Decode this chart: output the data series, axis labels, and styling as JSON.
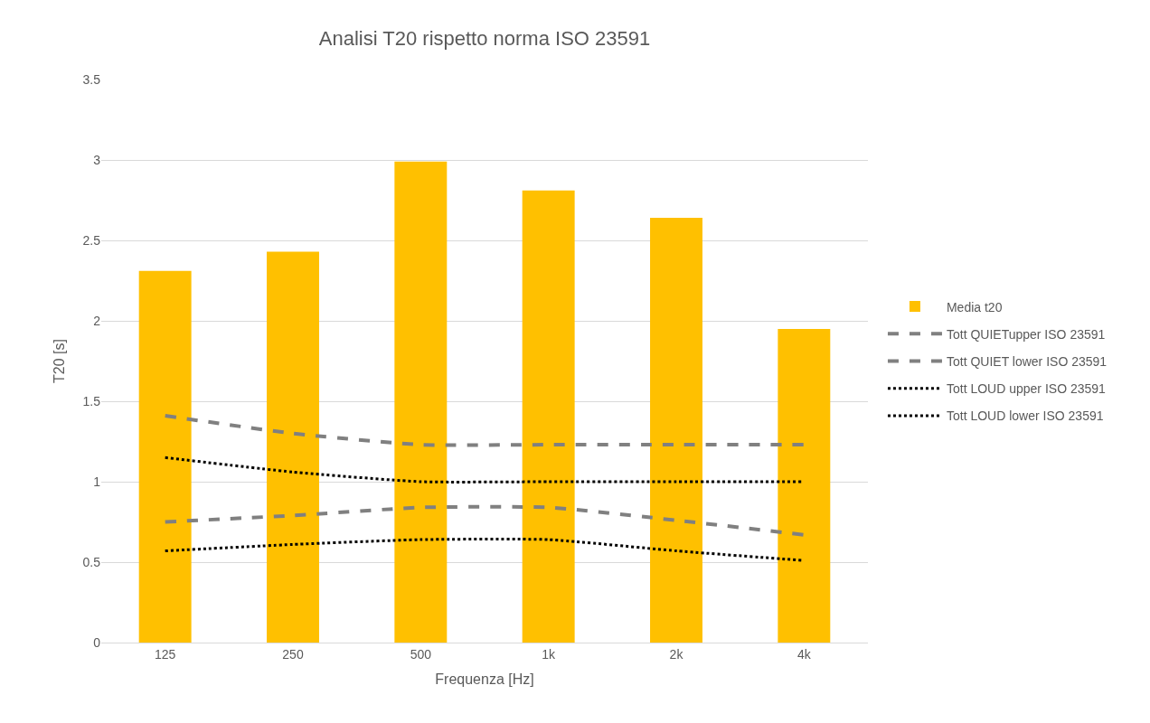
{
  "chart_data": {
    "type": "bar",
    "title": "Analisi T20 rispetto norma ISO 23591",
    "xlabel": "Frequenza [Hz]",
    "ylabel": "T20 [s]",
    "categories": [
      "125",
      "250",
      "500",
      "1k",
      "2k",
      "4k"
    ],
    "series": [
      {
        "name": "Media t20",
        "color": "#ffc000",
        "values": [
          2.31,
          2.43,
          2.99,
          2.81,
          2.64,
          1.95
        ]
      },
      {
        "name": "Tott QUIETupper ISO 23591",
        "type": "line",
        "line_style": "dashed",
        "color": "#808080",
        "values": [
          1.41,
          1.3,
          1.23,
          1.23,
          1.23,
          1.23
        ]
      },
      {
        "name": "Tott QUIET lower ISO 23591",
        "type": "line",
        "line_style": "dashed",
        "color": "#808080",
        "values": [
          0.75,
          0.79,
          0.84,
          0.84,
          0.76,
          0.67
        ]
      },
      {
        "name": "Tott LOUD upper ISO 23591",
        "type": "line",
        "line_style": "dotted",
        "color": "#000000",
        "values": [
          1.15,
          1.06,
          1.0,
          1.0,
          1.0,
          1.0
        ]
      },
      {
        "name": "Tott LOUD lower ISO 23591",
        "type": "line",
        "line_style": "dotted",
        "color": "#000000",
        "values": [
          0.57,
          0.61,
          0.64,
          0.64,
          0.57,
          0.51
        ]
      }
    ],
    "ylim": [
      0,
      3.5
    ],
    "yticks": [
      0,
      0.5,
      1,
      1.5,
      2,
      2.5,
      3,
      3.5
    ],
    "grid": "y",
    "legend": "right",
    "marker": "none"
  }
}
